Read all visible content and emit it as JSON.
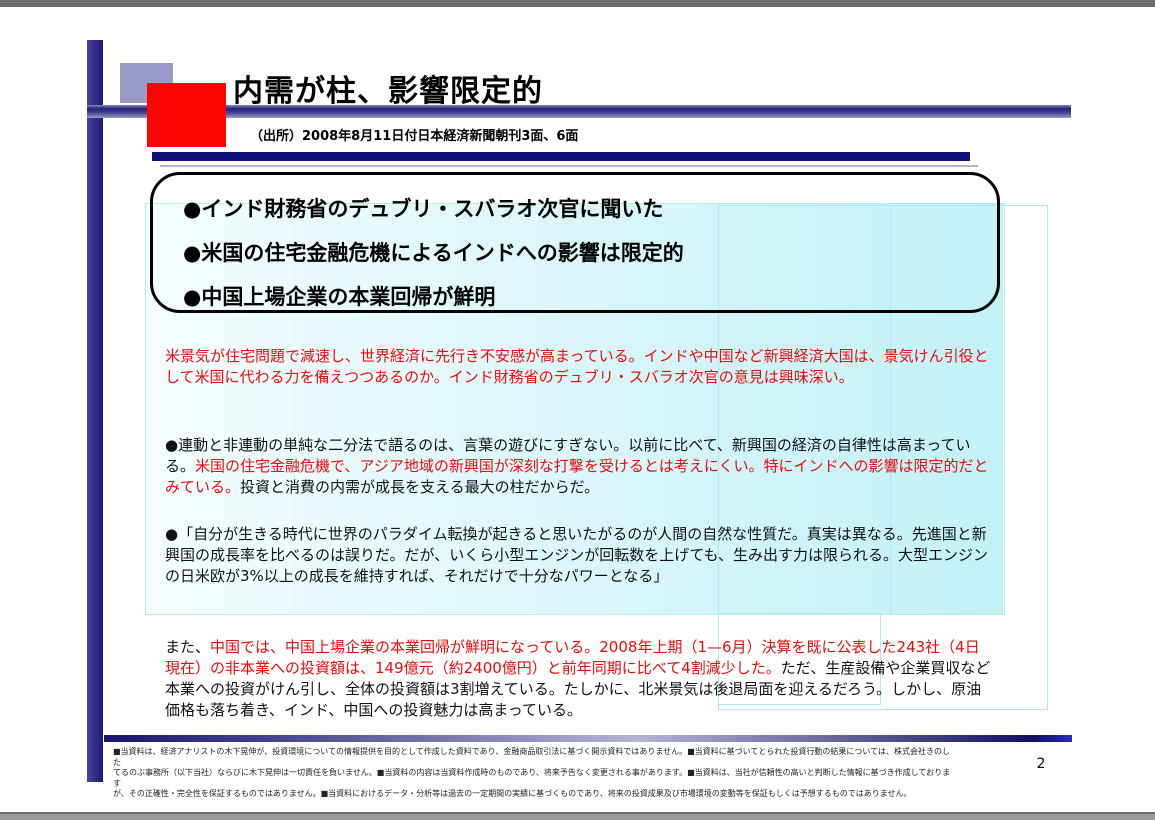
{
  "header": {
    "title": "内需が柱、影響限定的",
    "source": "（出所）2008年8月11日付日本経済新聞朝刊3面、6面"
  },
  "callout": {
    "bullets": [
      "●インド財務省のデュブリ・スバラオ次官に聞いた",
      "●米国の住宅金融危機によるインドへの影響は限定的",
      "●中国上場企業の本業回帰が鮮明"
    ]
  },
  "body": {
    "paragraphs": [
      {
        "segments": [
          {
            "color": "red",
            "text": "米景気が住宅問題で減速し、世界経済に先行き不安感が高まっている。インドや中国など新興経済大国は、景気けん引役として米国に代わる力を備えつつあるのか。インド財務省のデュブリ・スバラオ次官の意見は興味深い。"
          }
        ]
      },
      {
        "segments": [
          {
            "color": "black",
            "text": "●連動と非連動の単純な二分法で語るのは、言葉の遊びにすぎない。以前に比べて、新興国の経済の自律性は高まっている。"
          },
          {
            "color": "red",
            "text": "米国の住宅金融危機で、アジア地域の新興国が深刻な打撃を受けるとは考えにくい。特にインドへの影響は限定的だとみている。"
          },
          {
            "color": "black",
            "text": "投資と消費の内需が成長を支える最大の柱だからだ。"
          }
        ]
      },
      {
        "segments": [
          {
            "color": "black",
            "text": "●「自分が生きる時代に世界のパラダイム転換が起きると思いたがるのが人間の自然な性質だ。真実は異なる。先進国と新興国の成長率を比べるのは誤りだ。だが、いくら小型エンジンが回転数を上げても、生み出す力は限られる。大型エンジンの日米欧が3%以上の成長を維持すれば、それだけで十分なパワーとなる」"
          }
        ]
      },
      {
        "segments": [
          {
            "color": "black",
            "text": "また、"
          },
          {
            "color": "red",
            "text": "中国では、中国上場企業の本業回帰が鮮明になっている。2008年上期（1—6月）決算を既に公表した243社（4日現在）の非本業への投資額は、149億元（約2400億円）と前年同期に比べて4割減少した。"
          },
          {
            "color": "black",
            "text": "ただ、生産設備や企業買収など本業への投資がけん引し、全体の投資額は3割増えている。たしかに、北米景気は後退局面を迎えるだろう。しかし、原油価格も落ち着き、インド、中国への投資魅力は高まっている。"
          }
        ]
      }
    ]
  },
  "footer": {
    "disclaimer_lines": [
      "■当資料は、経済アナリストの木下晃伸が、投資環境についての情報提供を目的として作成した資料であり、金融商品取引法に基づく開示資料ではありません。■当資料に基づいてとられた投資行動の結果については、株式会社きのした",
      "てるのぶ事務所（以下当社）ならびに木下晃伸は一切責任を負いません。■当資料の内容は当資料作成時のものであり、将来予告なく変更される事があります。■当資料は、当社が信頼性の高いと判断した情報に基づき作成しております",
      "が、その正確性・完全性を保証するものではありません。■当資料におけるデータ・分析等は過去の一定期間の実績に基づくものであり、将来の投資成果及び市場環境の変動等を保証もしくは予想するものではありません。"
    ],
    "page_number": "2"
  },
  "colors": {
    "red_text": "#ee0a0a",
    "black_text": "#111111",
    "navy_bar": "#10107a",
    "red_square": "#fb0505",
    "lavender_square": "#9a9ac9",
    "cyan_panel": "#c2f1f7",
    "chrome_gray": "#6e6e6e"
  }
}
